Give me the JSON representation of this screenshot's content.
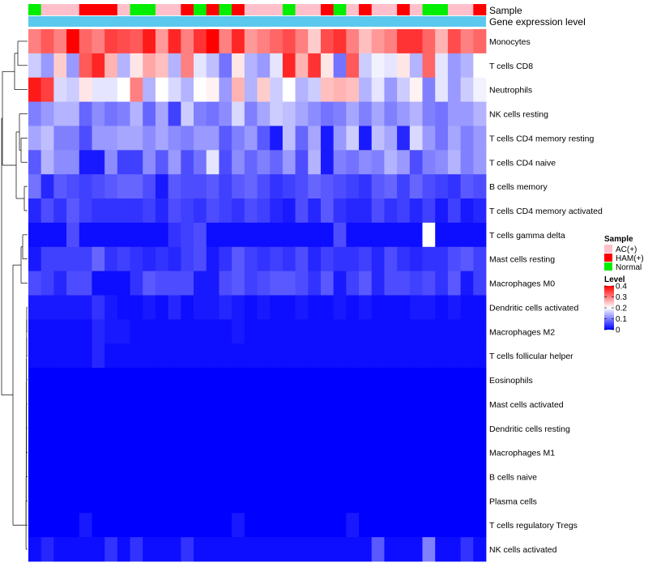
{
  "chart_data": {
    "type": "heatmap",
    "annotation_rows": [
      "Sample",
      "Gene expression level"
    ],
    "sample_groups": [
      "Normal",
      "AC(+)",
      "AC(+)",
      "AC(+)",
      "HAM(+)",
      "HAM(+)",
      "HAM(+)",
      "AC(+)",
      "Normal",
      "Normal",
      "AC(+)",
      "AC(+)",
      "HAM(+)",
      "Normal",
      "HAM(+)",
      "Normal",
      "HAM(+)",
      "AC(+)",
      "AC(+)",
      "AC(+)",
      "Normal",
      "AC(+)",
      "AC(+)",
      "HAM(+)",
      "Normal",
      "AC(+)",
      "HAM(+)",
      "AC(+)",
      "AC(+)",
      "HAM(+)",
      "AC(+)",
      "Normal",
      "Normal",
      "AC(+)",
      "AC(+)",
      "HAM(+)"
    ],
    "rows": [
      "Monocytes",
      "T cells CD8",
      "Neutrophils",
      "NK cells resting",
      "T cells CD4 memory resting",
      "T cells CD4 naive",
      "B cells memory",
      "T cells CD4 memory activated",
      "T cells gamma delta",
      "Mast cells resting",
      "Macrophages M0",
      "Dendritic cells activated",
      "Macrophages M2",
      "T cells follicular helper",
      "Eosinophils",
      "Mast cells activated",
      "Dendritic cells resting",
      "Macrophages M1",
      "B cells naive",
      "Plasma cells",
      "T cells regulatory  Tregs",
      "NK cells activated"
    ],
    "values": [
      [
        0.3,
        0.33,
        0.3,
        0.4,
        0.32,
        0.3,
        0.35,
        0.34,
        0.33,
        0.38,
        0.28,
        0.37,
        0.3,
        0.36,
        0.4,
        0.3,
        0.37,
        0.28,
        0.3,
        0.32,
        0.34,
        0.3,
        0.24,
        0.34,
        0.36,
        0.3,
        0.25,
        0.28,
        0.3,
        0.36,
        0.36,
        0.32,
        0.26,
        0.34,
        0.3,
        0.32
      ],
      [
        0.16,
        0.12,
        0.24,
        0.12,
        0.33,
        0.37,
        0.26,
        0.14,
        0.22,
        0.27,
        0.25,
        0.14,
        0.3,
        0.18,
        0.15,
        0.09,
        0.22,
        0.14,
        0.12,
        0.18,
        0.37,
        0.26,
        0.36,
        0.22,
        0.09,
        0.33,
        0.16,
        0.19,
        0.18,
        0.22,
        0.14,
        0.32,
        0.18,
        0.12,
        0.14,
        0.2
      ],
      [
        0.38,
        0.35,
        0.17,
        0.16,
        0.22,
        0.18,
        0.18,
        0.2,
        0.3,
        0.14,
        0.2,
        0.17,
        0.14,
        0.2,
        0.21,
        0.12,
        0.26,
        0.14,
        0.24,
        0.16,
        0.2,
        0.14,
        0.16,
        0.25,
        0.26,
        0.25,
        0.14,
        0.18,
        0.12,
        0.16,
        0.21,
        0.1,
        0.18,
        0.12,
        0.16,
        0.19
      ],
      [
        0.1,
        0.12,
        0.14,
        0.14,
        0.08,
        0.11,
        0.09,
        0.1,
        0.14,
        0.08,
        0.13,
        0.05,
        0.16,
        0.1,
        0.09,
        0.11,
        0.17,
        0.1,
        0.13,
        0.16,
        0.15,
        0.13,
        0.11,
        0.09,
        0.1,
        0.13,
        0.1,
        0.13,
        0.1,
        0.12,
        0.14,
        0.1,
        0.09,
        0.12,
        0.12,
        0.14
      ],
      [
        0.13,
        0.15,
        0.1,
        0.1,
        0.06,
        0.12,
        0.12,
        0.13,
        0.13,
        0.11,
        0.13,
        0.11,
        0.1,
        0.12,
        0.12,
        0.07,
        0.1,
        0.12,
        0.07,
        0.02,
        0.15,
        0.08,
        0.13,
        0.02,
        0.12,
        0.16,
        0.02,
        0.15,
        0.13,
        0.03,
        0.17,
        0.12,
        0.09,
        0.13,
        0.1,
        0.12
      ],
      [
        0.07,
        0.14,
        0.11,
        0.11,
        0.02,
        0.02,
        0.11,
        0.05,
        0.05,
        0.11,
        0.07,
        0.12,
        0.06,
        0.09,
        0.18,
        0.06,
        0.11,
        0.08,
        0.1,
        0.08,
        0.12,
        0.06,
        0.14,
        0.02,
        0.1,
        0.09,
        0.11,
        0.1,
        0.14,
        0.12,
        0.06,
        0.1,
        0.11,
        0.14,
        0.1,
        0.12
      ],
      [
        0.09,
        0.03,
        0.07,
        0.06,
        0.05,
        0.06,
        0.07,
        0.08,
        0.08,
        0.06,
        0.02,
        0.07,
        0.06,
        0.06,
        0.07,
        0.05,
        0.07,
        0.08,
        0.06,
        0.04,
        0.05,
        0.06,
        0.08,
        0.07,
        0.06,
        0.05,
        0.04,
        0.07,
        0.08,
        0.05,
        0.08,
        0.06,
        0.05,
        0.04,
        0.07,
        0.06
      ],
      [
        0.03,
        0.06,
        0.04,
        0.07,
        0.05,
        0.04,
        0.04,
        0.04,
        0.04,
        0.05,
        0.03,
        0.06,
        0.05,
        0.04,
        0.06,
        0.05,
        0.04,
        0.06,
        0.05,
        0.03,
        0.02,
        0.06,
        0.03,
        0.07,
        0.04,
        0.03,
        0.03,
        0.06,
        0.04,
        0.05,
        0.03,
        0.05,
        0.02,
        0.05,
        0.02,
        0.03
      ],
      [
        0.01,
        0.01,
        0.01,
        0.06,
        0.01,
        0.01,
        0.01,
        0.01,
        0.01,
        0.01,
        0.01,
        0.04,
        0.05,
        0.06,
        0.01,
        0.01,
        0.01,
        0.01,
        0.01,
        0.01,
        0.01,
        0.01,
        0.01,
        0.01,
        0.06,
        0.01,
        0.01,
        0.01,
        0.01,
        0.01,
        0.01,
        0.2,
        0.01,
        0.01,
        0.01,
        0.01
      ],
      [
        0.02,
        0.05,
        0.05,
        0.05,
        0.05,
        0.08,
        0.04,
        0.05,
        0.04,
        0.03,
        0.04,
        0.03,
        0.05,
        0.06,
        0.02,
        0.04,
        0.07,
        0.05,
        0.04,
        0.05,
        0.04,
        0.06,
        0.03,
        0.05,
        0.04,
        0.04,
        0.05,
        0.03,
        0.06,
        0.04,
        0.03,
        0.04,
        0.04,
        0.06,
        0.07,
        0.05
      ],
      [
        0.06,
        0.05,
        0.03,
        0.06,
        0.06,
        0.01,
        0.01,
        0.01,
        0.04,
        0.07,
        0.06,
        0.06,
        0.06,
        0.02,
        0.02,
        0.06,
        0.07,
        0.05,
        0.06,
        0.07,
        0.07,
        0.06,
        0.04,
        0.07,
        0.02,
        0.05,
        0.07,
        0.03,
        0.06,
        0.06,
        0.05,
        0.06,
        0.04,
        0.07,
        0.02,
        0.05
      ],
      [
        0.02,
        0.02,
        0.02,
        0.02,
        0.02,
        0.04,
        0.02,
        0.01,
        0.01,
        0.02,
        0.01,
        0.03,
        0.01,
        0.02,
        0.02,
        0.03,
        0.02,
        0.01,
        0.02,
        0.01,
        0.01,
        0.02,
        0.01,
        0.01,
        0.02,
        0.01,
        0.02,
        0.01,
        0.01,
        0.01,
        0.02,
        0.02,
        0.01,
        0.02,
        0.01,
        0.01
      ],
      [
        0.01,
        0.01,
        0.01,
        0.01,
        0.01,
        0.03,
        0.02,
        0.02,
        0.01,
        0.01,
        0.01,
        0.01,
        0.01,
        0.01,
        0.01,
        0.01,
        0.02,
        0.01,
        0.01,
        0.01,
        0.01,
        0.01,
        0.01,
        0.01,
        0.01,
        0.01,
        0.01,
        0.01,
        0.01,
        0.01,
        0.01,
        0.01,
        0.01,
        0.01,
        0.01,
        0.01
      ],
      [
        0.01,
        0.01,
        0.01,
        0.01,
        0.01,
        0.03,
        0.01,
        0.01,
        0.01,
        0.01,
        0.01,
        0.01,
        0.01,
        0.01,
        0.01,
        0.01,
        0.01,
        0.01,
        0.01,
        0.01,
        0.01,
        0.01,
        0.01,
        0.01,
        0.01,
        0.01,
        0.01,
        0.01,
        0.01,
        0.01,
        0.01,
        0.01,
        0.01,
        0.01,
        0.01,
        0.01
      ],
      [
        0.0,
        0.0,
        0.0,
        0.0,
        0.0,
        0.0,
        0.0,
        0.0,
        0.0,
        0.0,
        0.0,
        0.0,
        0.0,
        0.0,
        0.0,
        0.0,
        0.0,
        0.0,
        0.0,
        0.0,
        0.0,
        0.0,
        0.0,
        0.0,
        0.0,
        0.0,
        0.0,
        0.0,
        0.0,
        0.0,
        0.0,
        0.0,
        0.0,
        0.0,
        0.0,
        0.0
      ],
      [
        0.0,
        0.0,
        0.0,
        0.0,
        0.0,
        0.0,
        0.0,
        0.0,
        0.0,
        0.0,
        0.0,
        0.0,
        0.0,
        0.0,
        0.0,
        0.0,
        0.0,
        0.0,
        0.0,
        0.0,
        0.0,
        0.0,
        0.0,
        0.0,
        0.0,
        0.0,
        0.0,
        0.0,
        0.0,
        0.0,
        0.0,
        0.0,
        0.0,
        0.0,
        0.0,
        0.0
      ],
      [
        0.0,
        0.0,
        0.0,
        0.0,
        0.0,
        0.0,
        0.0,
        0.0,
        0.0,
        0.0,
        0.0,
        0.0,
        0.0,
        0.0,
        0.0,
        0.0,
        0.0,
        0.0,
        0.0,
        0.0,
        0.0,
        0.0,
        0.0,
        0.0,
        0.0,
        0.0,
        0.0,
        0.0,
        0.0,
        0.0,
        0.0,
        0.0,
        0.0,
        0.0,
        0.0,
        0.0
      ],
      [
        0.0,
        0.0,
        0.0,
        0.0,
        0.0,
        0.0,
        0.0,
        0.0,
        0.0,
        0.0,
        0.0,
        0.0,
        0.0,
        0.0,
        0.0,
        0.0,
        0.0,
        0.0,
        0.0,
        0.0,
        0.0,
        0.0,
        0.0,
        0.0,
        0.0,
        0.0,
        0.0,
        0.0,
        0.0,
        0.0,
        0.0,
        0.0,
        0.0,
        0.0,
        0.0,
        0.0
      ],
      [
        0.0,
        0.0,
        0.0,
        0.0,
        0.0,
        0.0,
        0.0,
        0.0,
        0.0,
        0.0,
        0.0,
        0.0,
        0.0,
        0.0,
        0.0,
        0.0,
        0.0,
        0.0,
        0.0,
        0.0,
        0.0,
        0.0,
        0.0,
        0.0,
        0.0,
        0.0,
        0.0,
        0.0,
        0.0,
        0.0,
        0.0,
        0.0,
        0.0,
        0.0,
        0.0,
        0.0
      ],
      [
        0.0,
        0.0,
        0.0,
        0.0,
        0.0,
        0.0,
        0.0,
        0.0,
        0.0,
        0.0,
        0.0,
        0.0,
        0.0,
        0.0,
        0.0,
        0.0,
        0.0,
        0.0,
        0.0,
        0.0,
        0.0,
        0.0,
        0.0,
        0.0,
        0.0,
        0.0,
        0.0,
        0.0,
        0.0,
        0.0,
        0.0,
        0.0,
        0.0,
        0.0,
        0.0,
        0.0
      ],
      [
        0.0,
        0.0,
        0.0,
        0.0,
        0.02,
        0.0,
        0.0,
        0.0,
        0.0,
        0.0,
        0.0,
        0.0,
        0.0,
        0.0,
        0.0,
        0.0,
        0.02,
        0.0,
        0.0,
        0.0,
        0.0,
        0.0,
        0.0,
        0.0,
        0.0,
        0.02,
        0.0,
        0.0,
        0.0,
        0.0,
        0.0,
        0.0,
        0.0,
        0.0,
        0.0,
        0.0
      ],
      [
        0.01,
        0.03,
        0.01,
        0.01,
        0.01,
        0.01,
        0.04,
        0.01,
        0.04,
        0.01,
        0.01,
        0.01,
        0.04,
        0.01,
        0.01,
        0.01,
        0.01,
        0.01,
        0.01,
        0.01,
        0.01,
        0.01,
        0.01,
        0.01,
        0.01,
        0.01,
        0.01,
        0.07,
        0.01,
        0.01,
        0.01,
        0.1,
        0.01,
        0.01,
        0.04,
        0.01
      ]
    ],
    "color_scale": {
      "min": 0,
      "max": 0.4,
      "low": "#0000ff",
      "mid": "#ffffff",
      "high": "#ff0000",
      "mid_value": 0.2
    },
    "legend": {
      "sample_title": "Sample",
      "sample_entries": [
        {
          "label": "AC(+)",
          "color": "#ffc0cb"
        },
        {
          "label": "HAM(+)",
          "color": "#ff0000"
        },
        {
          "label": "Normal",
          "color": "#00ee00"
        }
      ],
      "level_title": "Level",
      "level_ticks": [
        "0.4",
        "0.3",
        "0.2",
        "0.1",
        "0"
      ],
      "level_tick_values": [
        0.4,
        0.3,
        0.2,
        0.1,
        0
      ]
    },
    "gene_expression_color": "#5bc8ee",
    "row_dendrogram": true
  }
}
